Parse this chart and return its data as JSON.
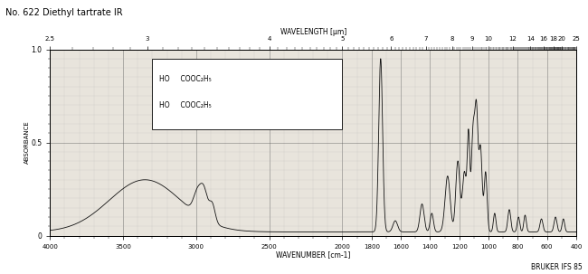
{
  "title": "No. 622 Diethyl tartrate IR",
  "xlabel_bottom": "WAVENUMBER [cm-1]",
  "xlabel_top": "WAVELENGTH [μm]",
  "ylabel": "ABSORBANCE",
  "branding": "BRUKER IFS 85",
  "xmin": 4000,
  "xmax": 400,
  "ymin": 0.0,
  "ymax": 1.0,
  "background_color": "#e8e4dc",
  "grid_major_color": "#555555",
  "grid_minor_color": "#aaaaaa",
  "line_color": "#111111",
  "top_wavelength_ticks_major": [
    2.5,
    3,
    4,
    5,
    6,
    7,
    8,
    9,
    10,
    12,
    14,
    16,
    18,
    20,
    25
  ],
  "bottom_wavenumber_major": [
    4000,
    3500,
    3000,
    2500,
    2000,
    1800,
    1600,
    1400,
    1200,
    1000,
    800,
    600,
    400
  ],
  "yticks_major": [
    0.0,
    0.5,
    1.0
  ]
}
